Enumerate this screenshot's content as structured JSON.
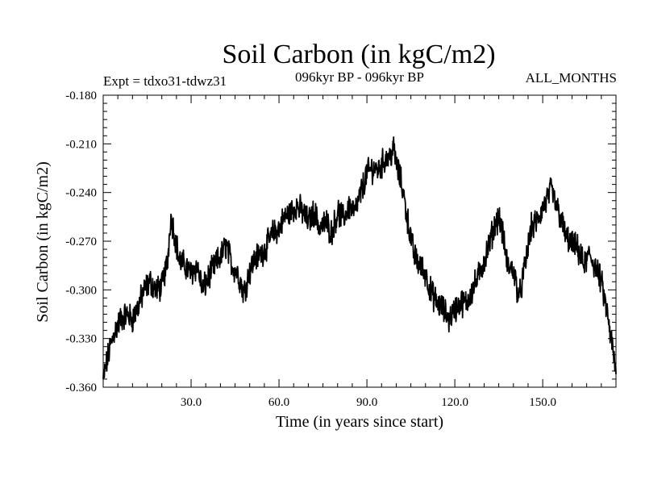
{
  "chart_data": {
    "type": "line",
    "title": "Soil Carbon (in kgC/m2)",
    "subtitle_left": "Expt = tdxo31-tdwz31",
    "subtitle_center": "096kyr BP - 096kyr BP",
    "subtitle_right": "ALL_MONTHS",
    "xlabel": "Time (in years since start)",
    "ylabel": "Soil Carbon (in kgC/m2)",
    "xlim": [
      0,
      175
    ],
    "ylim": [
      -0.36,
      -0.18
    ],
    "x_ticks": [
      30.0,
      60.0,
      90.0,
      120.0,
      150.0
    ],
    "x_tick_labels": [
      "30.0",
      "60.0",
      "90.0",
      "120.0",
      "150.0"
    ],
    "y_ticks": [
      -0.36,
      -0.33,
      -0.3,
      -0.27,
      -0.24,
      -0.21,
      -0.18
    ],
    "y_tick_labels": [
      "-0.360",
      "-0.330",
      "-0.300",
      "-0.270",
      "-0.240",
      "-0.210",
      "-0.180"
    ],
    "grid": false,
    "series": [
      {
        "name": "Soil Carbon",
        "x": [
          0,
          2,
          4,
          6,
          8,
          10,
          12,
          14,
          16,
          18,
          20,
          22,
          23,
          24,
          26,
          28,
          30,
          32,
          34,
          36,
          38,
          40,
          42,
          44,
          46,
          48,
          50,
          52,
          54,
          56,
          58,
          60,
          62,
          64,
          66,
          68,
          70,
          72,
          74,
          76,
          78,
          80,
          82,
          84,
          86,
          88,
          90,
          92,
          94,
          96,
          98,
          99,
          100,
          102,
          104,
          106,
          108,
          110,
          112,
          114,
          116,
          118,
          120,
          122,
          124,
          126,
          128,
          130,
          132,
          134,
          135,
          136,
          138,
          140,
          142,
          144,
          146,
          148,
          150,
          152,
          153,
          154,
          156,
          158,
          160,
          162,
          164,
          166,
          168,
          170,
          172,
          174,
          175
        ],
        "values": [
          -0.355,
          -0.338,
          -0.325,
          -0.318,
          -0.315,
          -0.318,
          -0.31,
          -0.3,
          -0.295,
          -0.3,
          -0.298,
          -0.282,
          -0.255,
          -0.262,
          -0.282,
          -0.285,
          -0.29,
          -0.285,
          -0.3,
          -0.292,
          -0.285,
          -0.28,
          -0.272,
          -0.285,
          -0.29,
          -0.302,
          -0.288,
          -0.28,
          -0.278,
          -0.272,
          -0.265,
          -0.262,
          -0.255,
          -0.252,
          -0.248,
          -0.252,
          -0.258,
          -0.252,
          -0.262,
          -0.258,
          -0.265,
          -0.252,
          -0.256,
          -0.248,
          -0.252,
          -0.24,
          -0.228,
          -0.225,
          -0.226,
          -0.22,
          -0.218,
          -0.212,
          -0.222,
          -0.236,
          -0.258,
          -0.278,
          -0.285,
          -0.29,
          -0.302,
          -0.308,
          -0.312,
          -0.318,
          -0.312,
          -0.308,
          -0.308,
          -0.3,
          -0.292,
          -0.282,
          -0.27,
          -0.258,
          -0.255,
          -0.262,
          -0.285,
          -0.288,
          -0.305,
          -0.285,
          -0.262,
          -0.258,
          -0.25,
          -0.242,
          -0.238,
          -0.245,
          -0.255,
          -0.268,
          -0.272,
          -0.275,
          -0.285,
          -0.278,
          -0.286,
          -0.295,
          -0.315,
          -0.338,
          -0.352
        ]
      }
    ]
  }
}
